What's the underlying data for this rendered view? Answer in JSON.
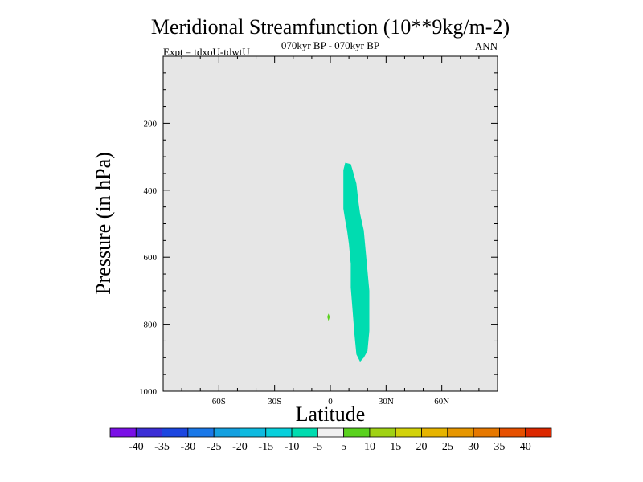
{
  "chart_data": {
    "type": "contour",
    "title": "Meridional Streamfunction (10**9kg/m-2)",
    "subtitle_left": "Expt = tdxoU-tdwtU",
    "subtitle_center": "070kyr BP - 070kyr BP",
    "subtitle_right": "ANN",
    "xlabel": "Latitude",
    "ylabel": "Pressure (in hPa)",
    "xlim": [
      -90,
      90
    ],
    "ylim": [
      1000,
      0
    ],
    "xticks": [
      {
        "value": -60,
        "label": "60S"
      },
      {
        "value": -30,
        "label": "30S"
      },
      {
        "value": 0,
        "label": "0"
      },
      {
        "value": 30,
        "label": "30N"
      },
      {
        "value": 60,
        "label": "60N"
      }
    ],
    "yticks": [
      {
        "value": 200,
        "label": "200"
      },
      {
        "value": 400,
        "label": "400"
      },
      {
        "value": 600,
        "label": "600"
      },
      {
        "value": 800,
        "label": "800"
      },
      {
        "value": 1000,
        "label": "1000"
      }
    ],
    "background_color": "#e6e6e6",
    "regions": [
      {
        "name": "negative-cell",
        "range": "-10 to -5",
        "color": "#00dcb0",
        "points": [
          [
            8,
            318
          ],
          [
            11,
            322
          ],
          [
            12,
            340
          ],
          [
            14,
            380
          ],
          [
            15,
            430
          ],
          [
            16,
            470
          ],
          [
            18,
            520
          ],
          [
            19,
            580
          ],
          [
            20,
            640
          ],
          [
            21,
            700
          ],
          [
            21,
            760
          ],
          [
            21,
            820
          ],
          [
            20,
            880
          ],
          [
            18,
            900
          ],
          [
            16,
            912
          ],
          [
            14,
            890
          ],
          [
            13,
            830
          ],
          [
            12,
            760
          ],
          [
            11,
            690
          ],
          [
            11,
            620
          ],
          [
            10,
            560
          ],
          [
            9,
            520
          ],
          [
            8,
            490
          ],
          [
            7,
            455
          ],
          [
            7,
            420
          ],
          [
            7,
            380
          ],
          [
            7,
            340
          ]
        ]
      },
      {
        "name": "small-positive-spot",
        "range": "5 to 10",
        "color": "#5ad21e",
        "points": [
          [
            -1,
            768
          ],
          [
            -0.3,
            778
          ],
          [
            -1,
            790
          ],
          [
            -1.7,
            778
          ]
        ]
      }
    ],
    "colorbar": {
      "levels": [
        "-40",
        "-35",
        "-30",
        "-25",
        "-20",
        "-15",
        "-10",
        "-5",
        "5",
        "10",
        "15",
        "20",
        "25",
        "30",
        "35",
        "40"
      ],
      "colors": [
        "#7a10e6",
        "#3c2ed6",
        "#1c46e0",
        "#1a78e8",
        "#14a0e0",
        "#0ebae0",
        "#08d0dc",
        "#00dcb0",
        "#f0f0f0",
        "#5ad21e",
        "#a0d214",
        "#d2d20a",
        "#e6b400",
        "#e69600",
        "#e67800",
        "#e65000",
        "#dc2800"
      ]
    }
  }
}
